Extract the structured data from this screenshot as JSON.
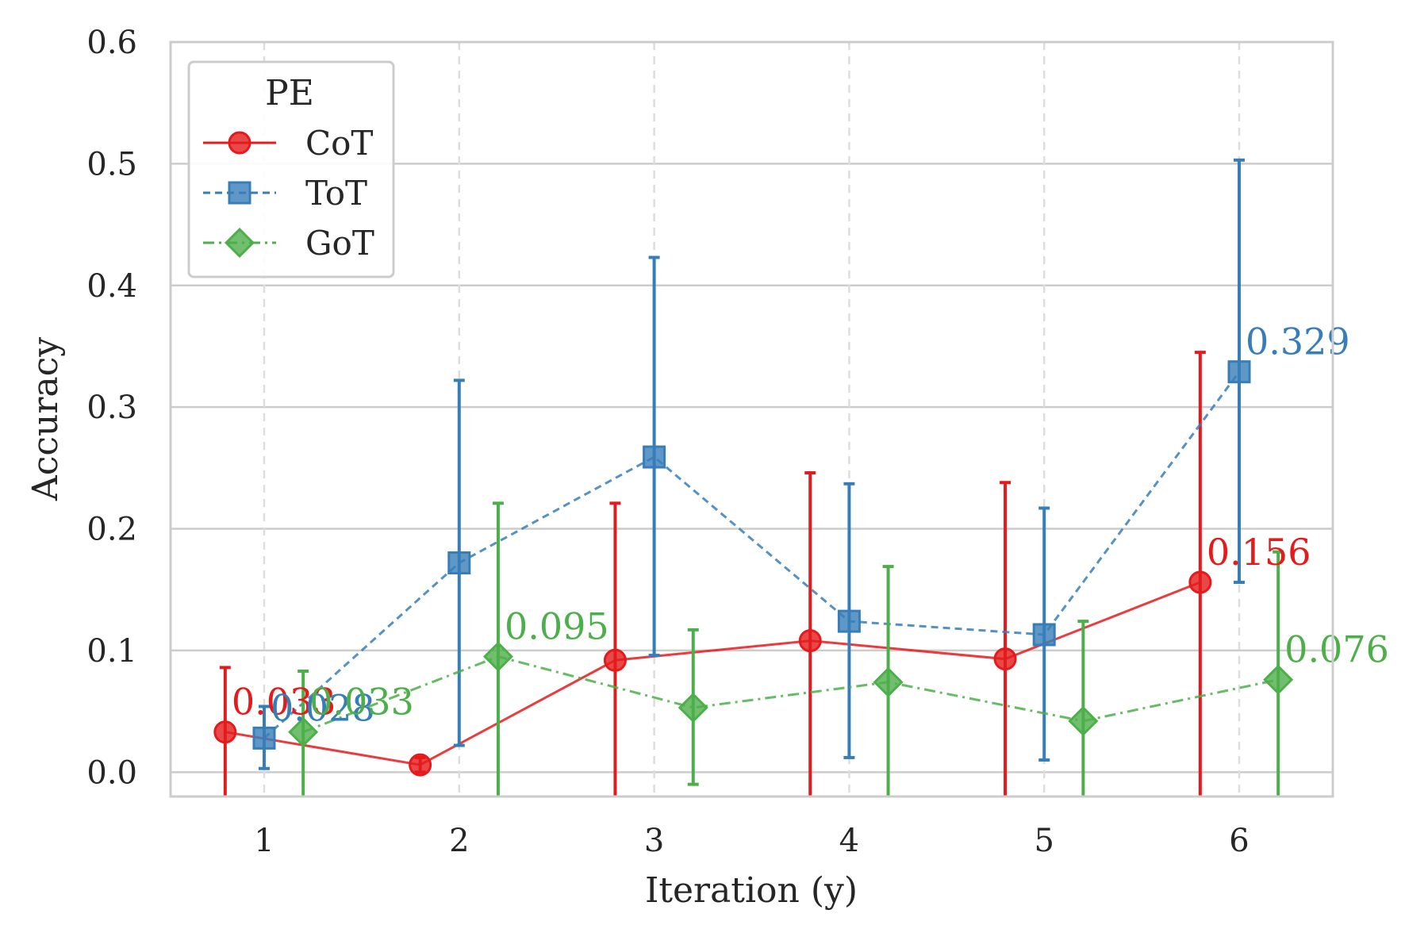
{
  "chart_data": {
    "type": "line",
    "xlabel": "Iteration (y)",
    "ylabel": "Accuracy",
    "x": [
      1,
      2,
      3,
      4,
      5,
      6
    ],
    "xticks": [
      "1",
      "2",
      "3",
      "4",
      "5",
      "6"
    ],
    "yticks": [
      "0.0",
      "0.1",
      "0.2",
      "0.3",
      "0.4",
      "0.5",
      "0.6"
    ],
    "xlim": [
      0.52,
      6.48
    ],
    "ylim": [
      -0.02,
      0.6
    ],
    "grid": true,
    "legend": {
      "title": "PE",
      "placement": "top-left"
    },
    "series": [
      {
        "name": "CoT",
        "color": "#e41a1c",
        "marker": "circle",
        "linestyle": "solid",
        "offset": -0.2,
        "values": [
          0.033,
          0.006,
          0.092,
          0.108,
          0.093,
          0.156
        ],
        "err_low": [
          -0.02,
          0.0,
          -0.02,
          -0.02,
          -0.02,
          -0.02
        ],
        "err_high": [
          0.086,
          0.012,
          0.221,
          0.246,
          0.238,
          0.345
        ],
        "labels": [
          "0.033",
          "",
          "",
          "",
          "",
          "0.156"
        ]
      },
      {
        "name": "ToT",
        "color": "#377eb8",
        "marker": "square",
        "linestyle": "dashed",
        "offset": 0.0,
        "values": [
          0.028,
          0.172,
          0.259,
          0.124,
          0.113,
          0.329
        ],
        "err_low": [
          0.003,
          0.022,
          0.096,
          0.012,
          0.01,
          0.156
        ],
        "err_high": [
          0.054,
          0.322,
          0.423,
          0.237,
          0.217,
          0.503
        ],
        "labels": [
          "0.028",
          "",
          "",
          "",
          "",
          "0.329"
        ]
      },
      {
        "name": "GoT",
        "color": "#4daf4a",
        "marker": "diamond",
        "linestyle": "dashdot",
        "offset": 0.2,
        "values": [
          0.033,
          0.095,
          0.053,
          0.074,
          0.042,
          0.076
        ],
        "err_low": [
          -0.02,
          -0.02,
          -0.01,
          -0.02,
          -0.02,
          -0.02
        ],
        "err_high": [
          0.083,
          0.221,
          0.117,
          0.169,
          0.124,
          0.181
        ],
        "labels": [
          "0.033",
          "0.095",
          "",
          "",
          "",
          "0.076"
        ]
      }
    ]
  }
}
